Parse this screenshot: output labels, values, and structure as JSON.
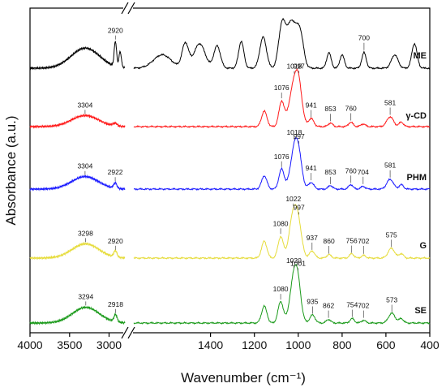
{
  "chart_data": {
    "type": "line",
    "xlabel": "Wavenumber (cm⁻¹)",
    "ylabel": "Absorbance (a.u.)",
    "xlim": [
      4000,
      400
    ],
    "axis_break": [
      2800,
      1750
    ],
    "xticks": [
      "4000",
      "3500",
      "3000",
      "1400",
      "1200",
      "1000",
      "800",
      "600",
      "400"
    ],
    "series": [
      {
        "name": "ME",
        "color": "#000000",
        "baseline": 0,
        "peaks": [
          {
            "x": 3300,
            "h": 0.45,
            "w": 180
          },
          {
            "x": 2920,
            "h": 0.55,
            "w": 15
          },
          {
            "x": 2860,
            "h": 0.35,
            "w": 15
          },
          {
            "x": 1620,
            "h": 0.3,
            "w": 40
          },
          {
            "x": 1515,
            "h": 0.55,
            "w": 15
          },
          {
            "x": 1450,
            "h": 0.55,
            "w": 25
          },
          {
            "x": 1370,
            "h": 0.5,
            "w": 15
          },
          {
            "x": 1260,
            "h": 0.6,
            "w": 12
          },
          {
            "x": 1160,
            "h": 0.7,
            "w": 15
          },
          {
            "x": 1075,
            "h": 0.85,
            "w": 15
          },
          {
            "x": 1030,
            "h": 1.05,
            "w": 25
          },
          {
            "x": 990,
            "h": 0.6,
            "w": 15
          },
          {
            "x": 860,
            "h": 0.35,
            "w": 10
          },
          {
            "x": 800,
            "h": 0.3,
            "w": 10
          },
          {
            "x": 700,
            "h": 0.35,
            "w": 10
          },
          {
            "x": 560,
            "h": 0.3,
            "w": 15
          },
          {
            "x": 470,
            "h": 0.55,
            "w": 12
          }
        ],
        "labels": [
          {
            "x": 2920,
            "text": "2920"
          },
          {
            "x": 700,
            "text": "700"
          }
        ]
      },
      {
        "name": "γ-CD",
        "color": "#ff1a1a",
        "baseline": 0,
        "peaks": [
          {
            "x": 3304,
            "h": 0.25,
            "w": 170
          },
          {
            "x": 2925,
            "h": 0.06,
            "w": 25
          },
          {
            "x": 1155,
            "h": 0.35,
            "w": 12
          },
          {
            "x": 1076,
            "h": 0.55,
            "w": 12
          },
          {
            "x": 1018,
            "h": 0.95,
            "w": 22
          },
          {
            "x": 997,
            "h": 0.55,
            "w": 15
          },
          {
            "x": 941,
            "h": 0.18,
            "w": 12
          },
          {
            "x": 853,
            "h": 0.08,
            "w": 10
          },
          {
            "x": 760,
            "h": 0.1,
            "w": 10
          },
          {
            "x": 704,
            "h": 0.06,
            "w": 10
          },
          {
            "x": 581,
            "h": 0.22,
            "w": 15
          },
          {
            "x": 530,
            "h": 0.1,
            "w": 10
          }
        ],
        "labels": [
          {
            "x": 3304,
            "text": "3304"
          },
          {
            "x": 1076,
            "text": "1076"
          },
          {
            "x": 1018,
            "text": "1018"
          },
          {
            "x": 997,
            "text": "997"
          },
          {
            "x": 941,
            "text": "941"
          },
          {
            "x": 853,
            "text": "853"
          },
          {
            "x": 760,
            "text": "760"
          },
          {
            "x": 581,
            "text": "581"
          }
        ]
      },
      {
        "name": "PHM",
        "color": "#1a1aff",
        "baseline": 0,
        "peaks": [
          {
            "x": 3304,
            "h": 0.28,
            "w": 170
          },
          {
            "x": 2922,
            "h": 0.12,
            "w": 20
          },
          {
            "x": 1155,
            "h": 0.3,
            "w": 12
          },
          {
            "x": 1076,
            "h": 0.45,
            "w": 12
          },
          {
            "x": 1018,
            "h": 0.85,
            "w": 18
          },
          {
            "x": 997,
            "h": 0.55,
            "w": 15
          },
          {
            "x": 941,
            "h": 0.15,
            "w": 12
          },
          {
            "x": 853,
            "h": 0.08,
            "w": 10
          },
          {
            "x": 760,
            "h": 0.1,
            "w": 10
          },
          {
            "x": 704,
            "h": 0.06,
            "w": 10
          },
          {
            "x": 581,
            "h": 0.22,
            "w": 15
          },
          {
            "x": 530,
            "h": 0.1,
            "w": 10
          }
        ],
        "labels": [
          {
            "x": 3304,
            "text": "3304"
          },
          {
            "x": 2922,
            "text": "2922"
          },
          {
            "x": 1076,
            "text": "1076"
          },
          {
            "x": 1018,
            "text": "1018"
          },
          {
            "x": 997,
            "text": "997"
          },
          {
            "x": 941,
            "text": "941"
          },
          {
            "x": 853,
            "text": "853"
          },
          {
            "x": 760,
            "text": "760"
          },
          {
            "x": 704,
            "text": "704"
          },
          {
            "x": 581,
            "text": "581"
          }
        ]
      },
      {
        "name": "G",
        "color": "#e6dc3c",
        "baseline": 0,
        "peaks": [
          {
            "x": 3298,
            "h": 0.32,
            "w": 170
          },
          {
            "x": 2920,
            "h": 0.14,
            "w": 20
          },
          {
            "x": 1155,
            "h": 0.38,
            "w": 12
          },
          {
            "x": 1080,
            "h": 0.48,
            "w": 12
          },
          {
            "x": 1022,
            "h": 1.0,
            "w": 18
          },
          {
            "x": 997,
            "h": 0.55,
            "w": 15
          },
          {
            "x": 937,
            "h": 0.16,
            "w": 12
          },
          {
            "x": 860,
            "h": 0.08,
            "w": 10
          },
          {
            "x": 756,
            "h": 0.1,
            "w": 10
          },
          {
            "x": 702,
            "h": 0.06,
            "w": 10
          },
          {
            "x": 575,
            "h": 0.22,
            "w": 15
          },
          {
            "x": 530,
            "h": 0.1,
            "w": 10
          }
        ],
        "labels": [
          {
            "x": 3298,
            "text": "3298"
          },
          {
            "x": 2920,
            "text": "2920"
          },
          {
            "x": 1080,
            "text": "1080"
          },
          {
            "x": 1022,
            "text": "1022"
          },
          {
            "x": 997,
            "text": "997"
          },
          {
            "x": 937,
            "text": "937"
          },
          {
            "x": 860,
            "text": "860"
          },
          {
            "x": 756,
            "text": "756"
          },
          {
            "x": 702,
            "text": "702"
          },
          {
            "x": 575,
            "text": "575"
          }
        ]
      },
      {
        "name": "SE",
        "color": "#1a9a1a",
        "baseline": 0,
        "peaks": [
          {
            "x": 3294,
            "h": 0.35,
            "w": 170
          },
          {
            "x": 2918,
            "h": 0.16,
            "w": 20
          },
          {
            "x": 1155,
            "h": 0.38,
            "w": 12
          },
          {
            "x": 1080,
            "h": 0.48,
            "w": 12
          },
          {
            "x": 1020,
            "h": 0.95,
            "w": 18
          },
          {
            "x": 1001,
            "h": 0.6,
            "w": 15
          },
          {
            "x": 935,
            "h": 0.18,
            "w": 12
          },
          {
            "x": 862,
            "h": 0.08,
            "w": 10
          },
          {
            "x": 754,
            "h": 0.1,
            "w": 10
          },
          {
            "x": 702,
            "h": 0.06,
            "w": 10
          },
          {
            "x": 573,
            "h": 0.22,
            "w": 15
          },
          {
            "x": 530,
            "h": 0.1,
            "w": 10
          }
        ],
        "labels": [
          {
            "x": 3294,
            "text": "3294"
          },
          {
            "x": 2918,
            "text": "2918"
          },
          {
            "x": 1080,
            "text": "1080"
          },
          {
            "x": 1020,
            "text": "1020"
          },
          {
            "x": 1001,
            "text": "1001"
          },
          {
            "x": 935,
            "text": "935"
          },
          {
            "x": 862,
            "text": "862"
          },
          {
            "x": 754,
            "text": "754"
          },
          {
            "x": 702,
            "text": "702"
          },
          {
            "x": 573,
            "text": "573"
          }
        ]
      }
    ]
  }
}
